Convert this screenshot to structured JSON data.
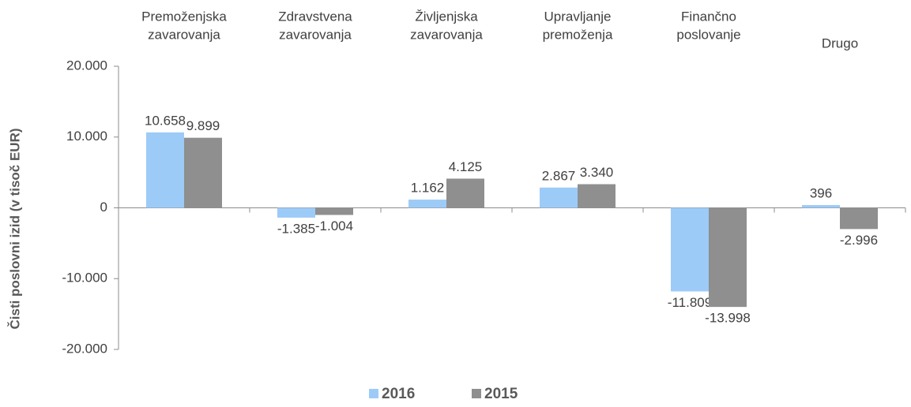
{
  "chart_data": {
    "type": "bar",
    "y_label": "Čisti poslovni izid  (v tisoč EUR)",
    "categories": [
      [
        "Premoženjska",
        "zavarovanja"
      ],
      [
        "Zdravstvena",
        "zavarovanja"
      ],
      [
        "Življenjska",
        "zavarovanja"
      ],
      [
        "Upravljanje",
        "premoženja"
      ],
      [
        "Finančno",
        "poslovanje"
      ],
      [
        "Drugo"
      ]
    ],
    "series": [
      {
        "name": "2016",
        "color": "#9dcbf8",
        "values": [
          10658,
          -1385,
          1162,
          2867,
          -11809,
          396
        ],
        "value_labels": [
          "10.658",
          "-1.385",
          "1.162",
          "2.867",
          "-11.809",
          "396"
        ]
      },
      {
        "name": "2015",
        "color": "#8f8f8f",
        "values": [
          9899,
          -1004,
          4125,
          3340,
          -13998,
          -2996
        ],
        "value_labels": [
          "9.899",
          "-1.004",
          "4.125",
          "3.340",
          "-13.998",
          "-2.996"
        ]
      }
    ],
    "ylim": [
      -20000,
      20000
    ],
    "yticks": [
      {
        "value": -20000,
        "label": "-20.000"
      },
      {
        "value": -10000,
        "label": "-10.000"
      },
      0,
      {
        "value": 10000,
        "label": "10.000"
      },
      {
        "value": 20000,
        "label": "20.000"
      }
    ],
    "legend": "bottom"
  }
}
